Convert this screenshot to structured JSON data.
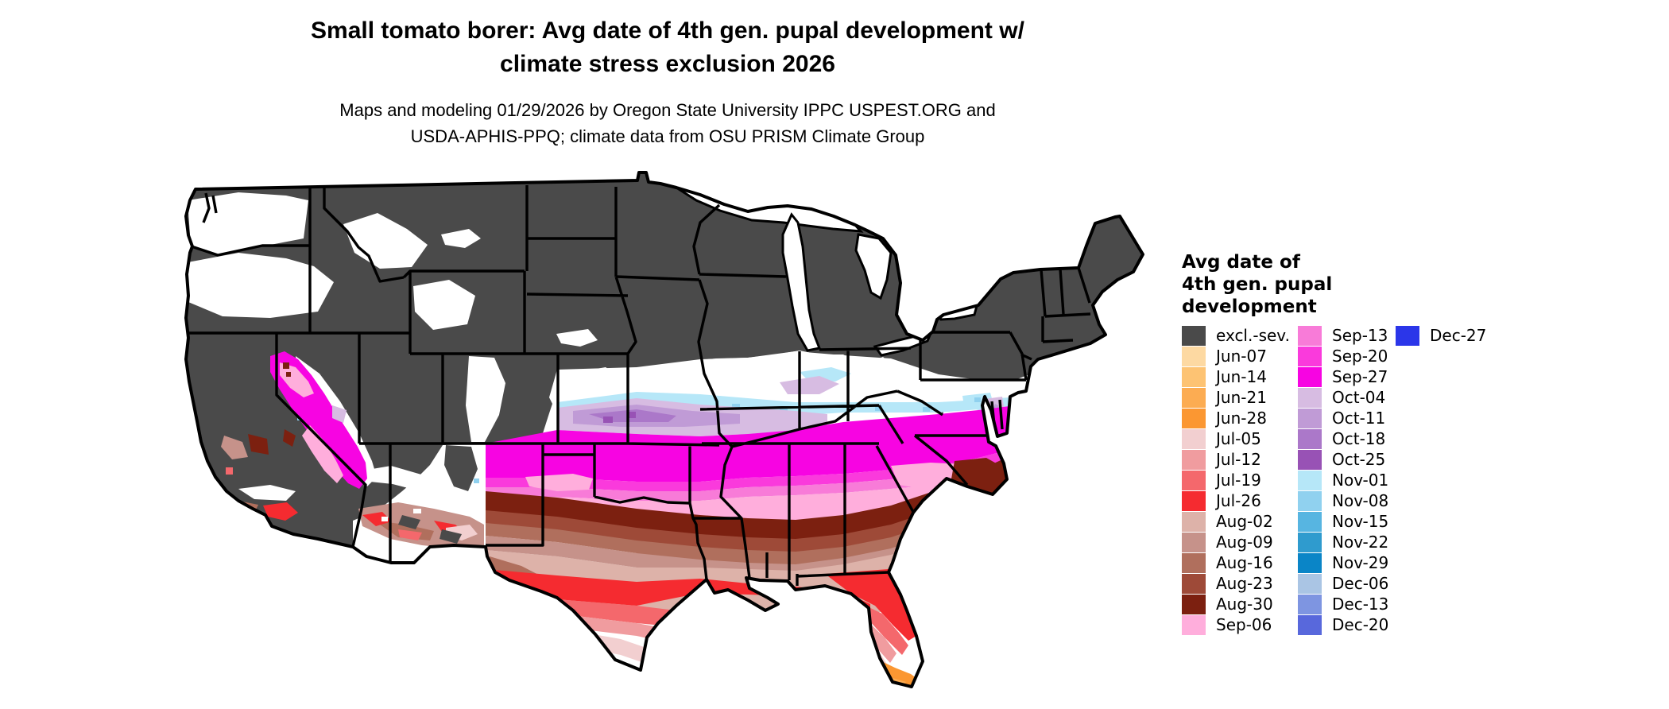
{
  "title": {
    "line1": "Small tomato borer: Avg date of 4th gen. pupal development w/",
    "line2": "climate stress exclusion 2026"
  },
  "subtitle": {
    "line1": "Maps and modeling 01/29/2026 by Oregon State University IPPC USPEST.ORG and",
    "line2": "USDA-APHIS-PPQ; climate data from OSU PRISM Climate Group"
  },
  "map": {
    "region": "contiguous United States",
    "kind": "raster choropleth of average date of 4th generation pupal development with climate stress exclusion",
    "excluded_class_label": "excl.-sev.",
    "boundary_color": "#000000",
    "background": "#FFFFFF"
  },
  "palette": {
    "excl": "#4A4A4A",
    "jun07": "#FDD9A2",
    "jun14": "#FDC373",
    "jun21": "#FCAC52",
    "jun28": "#FB9732",
    "jul05": "#F2CFD0",
    "jul12": "#F09C9F",
    "jul19": "#F4686C",
    "jul26": "#F52B30",
    "aug02": "#DDB2A9",
    "aug09": "#C6928A",
    "aug16": "#B06F5D",
    "aug23": "#9E4A38",
    "aug30": "#7C2010",
    "sep06": "#FFAEDC",
    "sep13": "#F87BD8",
    "sep20": "#FA3ADC",
    "sep27": "#F704E2",
    "oct04": "#D7BCE2",
    "oct11": "#C09BD6",
    "oct18": "#AB78C9",
    "oct25": "#9852B5",
    "nov01": "#B6E7F8",
    "nov08": "#90D1EF",
    "nov15": "#57B5E1",
    "nov22": "#2F9BCE",
    "nov29": "#0A85C7",
    "dec06": "#AAC5E4",
    "dec13": "#7E95E1",
    "dec20": "#5868DC",
    "dec27": "#2B36E9"
  },
  "legend": {
    "title_lines": [
      "Avg date of",
      "4th gen. pupal",
      "development"
    ],
    "columns": [
      [
        {
          "label": "excl.-sev.",
          "key": "excl"
        },
        {
          "label": "Jun-07",
          "key": "jun07"
        },
        {
          "label": "Jun-14",
          "key": "jun14"
        },
        {
          "label": "Jun-21",
          "key": "jun21"
        },
        {
          "label": "Jun-28",
          "key": "jun28"
        },
        {
          "label": "Jul-05",
          "key": "jul05"
        },
        {
          "label": "Jul-12",
          "key": "jul12"
        },
        {
          "label": "Jul-19",
          "key": "jul19"
        },
        {
          "label": "Jul-26",
          "key": "jul26"
        },
        {
          "label": "Aug-02",
          "key": "aug02"
        },
        {
          "label": "Aug-09",
          "key": "aug09"
        },
        {
          "label": "Aug-16",
          "key": "aug16"
        },
        {
          "label": "Aug-23",
          "key": "aug23"
        },
        {
          "label": "Aug-30",
          "key": "aug30"
        },
        {
          "label": "Sep-06",
          "key": "sep06"
        }
      ],
      [
        {
          "label": "Sep-13",
          "key": "sep13"
        },
        {
          "label": "Sep-20",
          "key": "sep20"
        },
        {
          "label": "Sep-27",
          "key": "sep27"
        },
        {
          "label": "Oct-04",
          "key": "oct04"
        },
        {
          "label": "Oct-11",
          "key": "oct11"
        },
        {
          "label": "Oct-18",
          "key": "oct18"
        },
        {
          "label": "Oct-25",
          "key": "oct25"
        },
        {
          "label": "Nov-01",
          "key": "nov01"
        },
        {
          "label": "Nov-08",
          "key": "nov08"
        },
        {
          "label": "Nov-15",
          "key": "nov15"
        },
        {
          "label": "Nov-22",
          "key": "nov22"
        },
        {
          "label": "Nov-29",
          "key": "nov29"
        },
        {
          "label": "Dec-06",
          "key": "dec06"
        },
        {
          "label": "Dec-13",
          "key": "dec13"
        },
        {
          "label": "Dec-20",
          "key": "dec20"
        }
      ],
      [
        {
          "label": "Dec-27",
          "key": "dec27"
        }
      ]
    ]
  }
}
